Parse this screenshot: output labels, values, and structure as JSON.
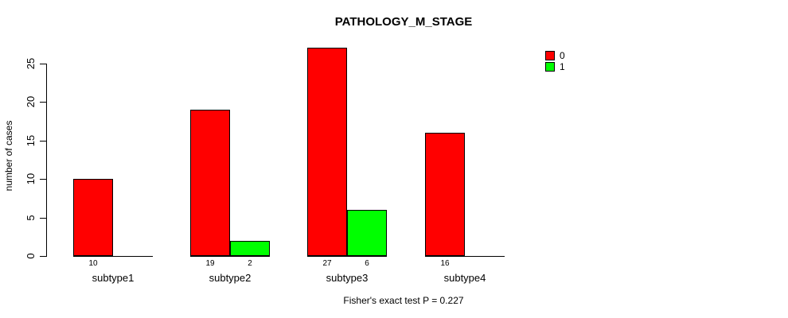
{
  "header": {
    "title": "PATHOLOGY_M_STAGE"
  },
  "legend": {
    "items": [
      {
        "label": "0",
        "color": "#FF0000"
      },
      {
        "label": "1",
        "color": "#00FF00"
      }
    ]
  },
  "footer": {
    "text": "Fisher's exact test P = 0.227"
  },
  "chart_data": {
    "type": "bar",
    "title": "PATHOLOGY_M_STAGE",
    "categories": [
      "subtype1",
      "subtype2",
      "subtype3",
      "subtype4"
    ],
    "series": [
      {
        "name": "0",
        "color": "#FF0000",
        "values": [
          10,
          19,
          27,
          16
        ]
      },
      {
        "name": "1",
        "color": "#00FF00",
        "values": [
          0,
          2,
          6,
          0
        ]
      }
    ],
    "xlabel": "",
    "ylabel": "number of cases",
    "ylim": [
      0,
      27
    ],
    "yticks": [
      0,
      5,
      10,
      15,
      20,
      25
    ],
    "grid": false,
    "legend_position": "top-right",
    "bar_value_labels": true,
    "zero_values_unlabeled": true,
    "annotation": "Fisher's exact test P = 0.227"
  }
}
